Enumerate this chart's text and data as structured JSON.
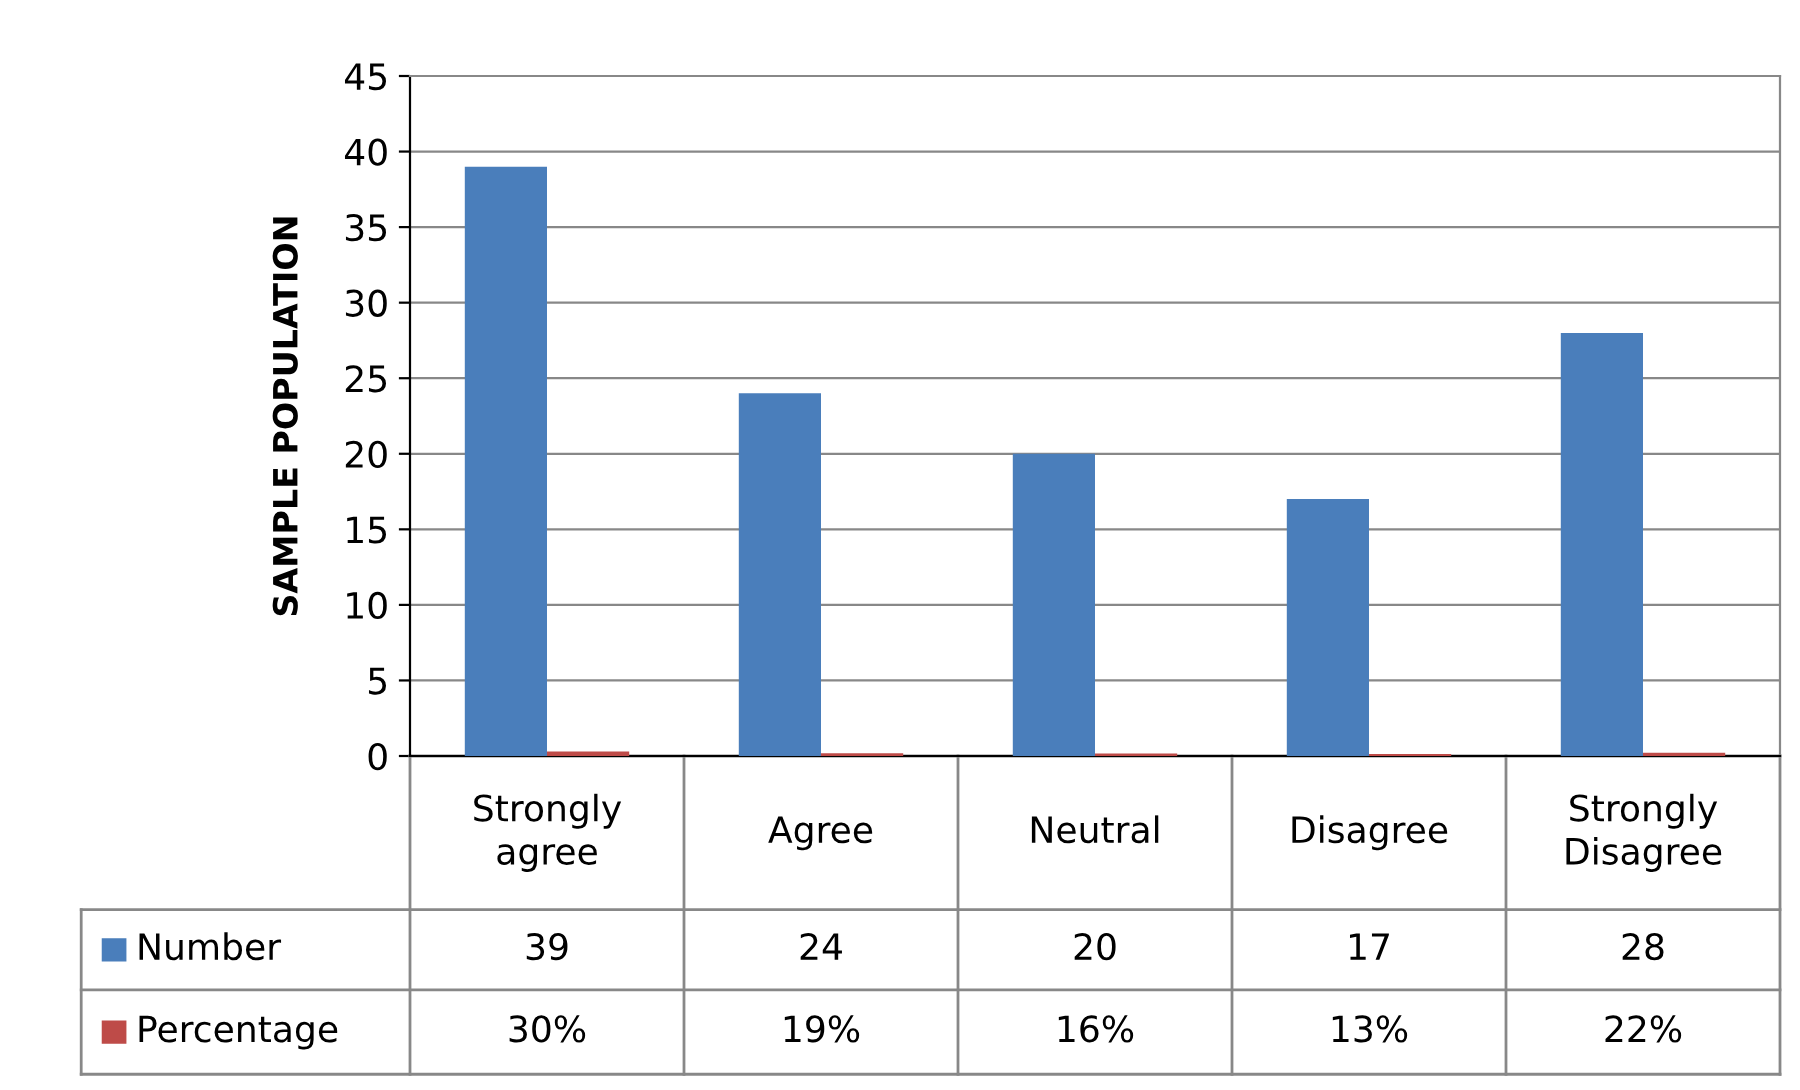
{
  "chart_data": {
    "type": "bar",
    "ylabel": "SAMPLE POPULATION",
    "categories": [
      "Strongly\nagree",
      "Agree",
      "Neutral",
      "Disagree",
      "Strongly\nDisagree"
    ],
    "series": [
      {
        "name": "Number",
        "color": "#4a7ebb",
        "values": [
          39,
          24,
          20,
          17,
          28
        ],
        "value_labels": [
          "39",
          "24",
          "20",
          "17",
          "28"
        ]
      },
      {
        "name": "Percentage",
        "color": "#be4b48",
        "values": [
          0.3,
          0.19,
          0.16,
          0.13,
          0.22
        ],
        "value_labels": [
          "30%",
          "19%",
          "16%",
          "13%",
          "22%"
        ]
      }
    ],
    "ylim": [
      0,
      45
    ],
    "yticks": [
      0,
      5,
      10,
      15,
      20,
      25,
      30,
      35,
      40,
      45
    ],
    "grid": "y",
    "legend": "bottom"
  }
}
